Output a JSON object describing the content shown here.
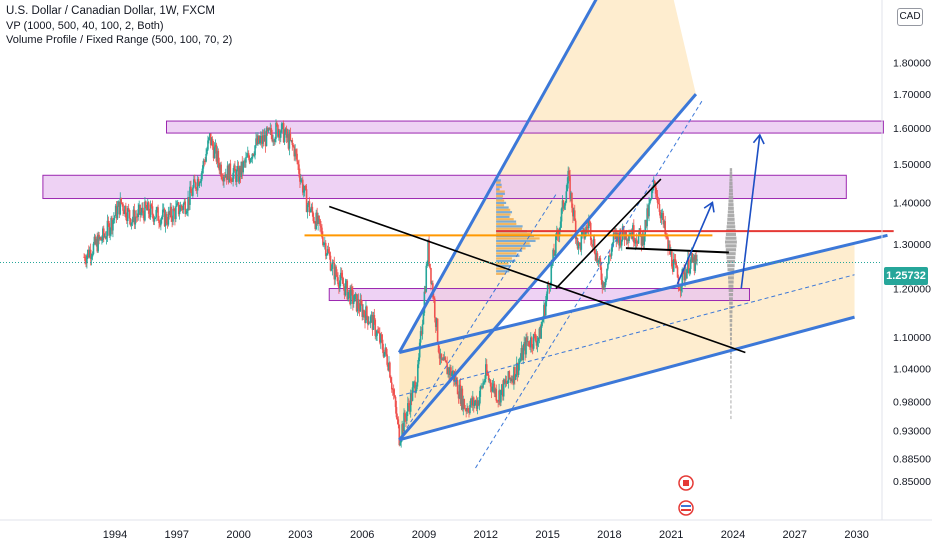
{
  "legend": {
    "title": "U.S. Dollar / Canadian Dollar, 1W, FXCM",
    "indicator1": "VP (1000, 500, 40, 100, 2, Both)",
    "indicator2": "Volume Profile / Fixed Range (500, 100, 70, 2)"
  },
  "currency_badge": "CAD",
  "last_price": "1.25732",
  "colors": {
    "up": "#26a69a",
    "down": "#ef5350",
    "channel_line": "#3c78d8",
    "channel_fill": "#fde7bf",
    "zone_fill": "#e8c3f0",
    "zone_border": "#9c27b0",
    "trend_black": "#000000",
    "level_orange": "#ff9800",
    "level_red": "#e53935",
    "arrow_blue": "#1c4fc4",
    "axis_text": "#131722"
  },
  "chart_data": {
    "type": "candlestick",
    "symbol": "USDCAD",
    "timeframe": "1W",
    "y_scale": "log",
    "last_price": 1.25732,
    "x_ticks": [
      "1994",
      "1997",
      "2000",
      "2003",
      "2006",
      "2009",
      "2012",
      "2015",
      "2018",
      "2021",
      "2024",
      "2027",
      "2030"
    ],
    "y_ticks": [
      "1.80000",
      "1.70000",
      "1.60000",
      "1.50000",
      "1.40000",
      "1.30000",
      "1.20000",
      "1.10000",
      "1.04000",
      "0.98000",
      "0.93000",
      "0.88500",
      "0.85000"
    ],
    "price_path": [
      [
        1992.5,
        1.27
      ],
      [
        1993.5,
        1.32
      ],
      [
        1994.3,
        1.4
      ],
      [
        1994.8,
        1.36
      ],
      [
        1995.5,
        1.38
      ],
      [
        1996.5,
        1.36
      ],
      [
        1997.5,
        1.4
      ],
      [
        1998.2,
        1.48
      ],
      [
        1998.6,
        1.57
      ],
      [
        1999.2,
        1.48
      ],
      [
        2000.0,
        1.47
      ],
      [
        2000.8,
        1.55
      ],
      [
        2002.0,
        1.6
      ],
      [
        2002.7,
        1.54
      ],
      [
        2003.3,
        1.4
      ],
      [
        2004.0,
        1.33
      ],
      [
        2004.6,
        1.24
      ],
      [
        2005.5,
        1.18
      ],
      [
        2006.5,
        1.13
      ],
      [
        2007.3,
        1.05
      ],
      [
        2007.8,
        0.92
      ],
      [
        2008.4,
        0.99
      ],
      [
        2008.7,
        1.03
      ],
      [
        2009.2,
        1.29
      ],
      [
        2009.8,
        1.05
      ],
      [
        2010.4,
        1.03
      ],
      [
        2011.0,
        0.97
      ],
      [
        2011.6,
        0.98
      ],
      [
        2012.0,
        1.03
      ],
      [
        2012.6,
        0.99
      ],
      [
        2013.5,
        1.04
      ],
      [
        2014.0,
        1.09
      ],
      [
        2014.6,
        1.1
      ],
      [
        2015.4,
        1.3
      ],
      [
        2016.0,
        1.46
      ],
      [
        2016.5,
        1.29
      ],
      [
        2017.0,
        1.35
      ],
      [
        2017.7,
        1.21
      ],
      [
        2018.2,
        1.31
      ],
      [
        2019.0,
        1.33
      ],
      [
        2019.6,
        1.31
      ],
      [
        2020.2,
        1.45
      ],
      [
        2020.8,
        1.3
      ],
      [
        2021.4,
        1.21
      ],
      [
        2021.9,
        1.26
      ],
      [
        2022.3,
        1.25
      ]
    ],
    "horizontal_zones": [
      {
        "x_from": 1996.5,
        "x_to": 2031.3,
        "y_from": 1.59,
        "y_to": 1.62
      },
      {
        "x_from": 1990.5,
        "x_to": 2029.5,
        "y_from": 1.41,
        "y_to": 1.47
      },
      {
        "x_from": 2004.4,
        "x_to": 2024.8,
        "y_from": 1.19,
        "y_to": 1.2
      }
    ],
    "horizontal_levels": [
      {
        "kind": "orange",
        "x_from": 2003.2,
        "x_to": 2023.0,
        "y": 1.32
      },
      {
        "kind": "red",
        "x_from": 2012.5,
        "x_to": 2031.8,
        "y": 1.33
      }
    ],
    "upper_channel": [
      {
        "line": "lower_edge",
        "x1": 2007.8,
        "y1": 0.915,
        "x2": 2022.2,
        "y2": 1.7
      },
      {
        "line": "upper_edge",
        "x1": 2007.8,
        "y1": 1.07,
        "x2": 2020.0,
        "y2": 2.4
      },
      {
        "line": "parallel",
        "x1": 2007.8,
        "y1": 0.915,
        "x2": 2015.4,
        "y2": 1.42
      },
      {
        "line": "parallel",
        "x1": 2011.5,
        "y1": 0.87,
        "x2": 2022.5,
        "y2": 1.68
      }
    ],
    "lower_channel": [
      {
        "line": "upper_edge",
        "x1": 2007.8,
        "y1": 1.07,
        "x2": 2031.5,
        "y2": 1.32
      },
      {
        "line": "lower_edge",
        "x1": 2007.8,
        "y1": 0.915,
        "x2": 2029.9,
        "y2": 1.14
      }
    ],
    "trend_lines": [
      {
        "x1": 2004.4,
        "y1": 1.39,
        "x2": 2024.6,
        "y2": 1.07
      },
      {
        "x1": 2015.4,
        "y1": 1.2,
        "x2": 2020.5,
        "y2": 1.46
      },
      {
        "x1": 2018.8,
        "y1": 1.29,
        "x2": 2023.8,
        "y2": 1.28
      }
    ],
    "projection_arrows": [
      {
        "x1": 2021.3,
        "y1": 1.21,
        "x2": 2023.0,
        "y2": 1.4
      },
      {
        "x1": 2024.4,
        "y1": 1.2,
        "x2": 2025.3,
        "y2": 1.58
      }
    ],
    "volume_profile": {
      "x_from": 2012.5,
      "x_to": 2016.5,
      "y_from": 1.23,
      "y_to": 1.46
    }
  }
}
